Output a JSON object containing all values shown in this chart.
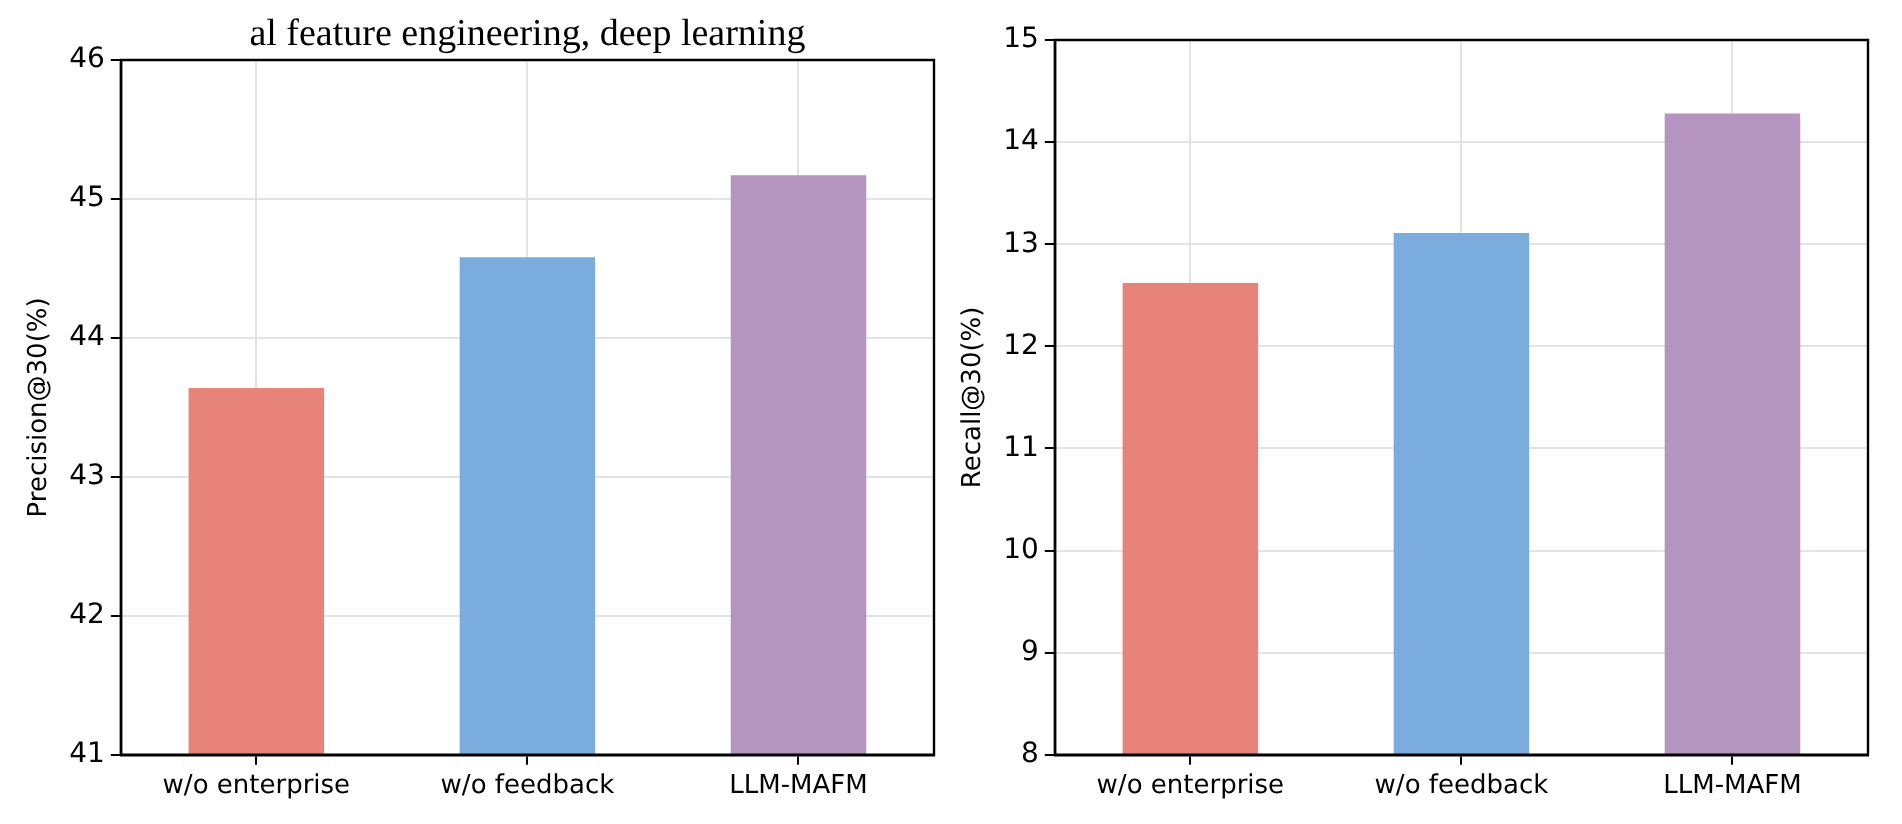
{
  "chart_data": [
    {
      "type": "bar",
      "categories": [
        "w/o enterprise",
        "w/o feedback",
        "LLM-MAFM"
      ],
      "values": [
        43.64,
        44.58,
        45.17
      ],
      "colors": [
        "#e8837a",
        "#7aaddd",
        "#b395c0"
      ],
      "ylabel": "Precision@30(%)",
      "ylim": [
        41,
        46
      ],
      "yticks": [
        41,
        42,
        43,
        44,
        45,
        46
      ],
      "grid": true,
      "annotations": [
        "al feature engineering, deep learning"
      ]
    },
    {
      "type": "bar",
      "categories": [
        "w/o enterprise",
        "w/o feedback",
        "LLM-MAFM"
      ],
      "values": [
        12.62,
        13.11,
        14.28
      ],
      "colors": [
        "#e8837a",
        "#7aaddd",
        "#b395c0"
      ],
      "ylabel": "Recall@30(%)",
      "ylim": [
        8,
        15
      ],
      "yticks": [
        8,
        9,
        10,
        11,
        12,
        13,
        14,
        15
      ],
      "grid": true
    }
  ]
}
